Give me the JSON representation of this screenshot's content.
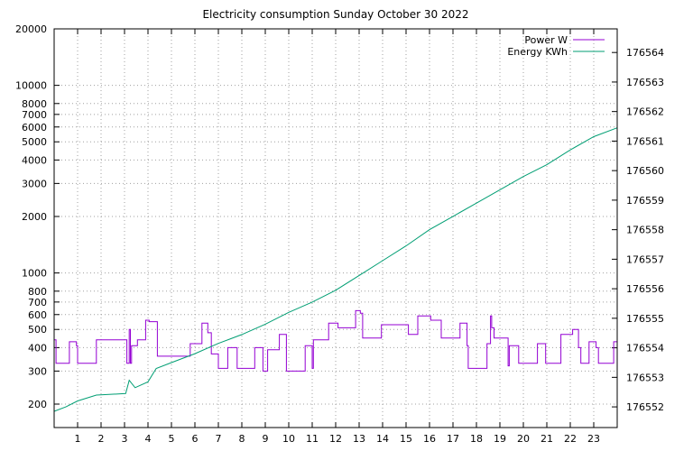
{
  "chart_data": {
    "type": "line",
    "title": "Electricity consumption Sunday October 30 2022",
    "grid": true,
    "legend_position": "top-right",
    "x_axis": {
      "range": [
        0,
        24
      ],
      "ticks": [
        1,
        2,
        3,
        4,
        5,
        6,
        7,
        8,
        9,
        10,
        11,
        12,
        13,
        14,
        15,
        16,
        17,
        18,
        19,
        20,
        21,
        22,
        23
      ]
    },
    "y_left": {
      "scale": "log",
      "range": [
        150,
        20000
      ],
      "ticks": [
        200,
        300,
        400,
        500,
        600,
        700,
        800,
        1000,
        2000,
        3000,
        4000,
        5000,
        6000,
        7000,
        8000,
        10000,
        20000
      ]
    },
    "y_right": {
      "scale": "linear",
      "range": [
        176551.3,
        176564.8
      ],
      "ticks": [
        176552,
        176553,
        176554,
        176555,
        176556,
        176557,
        176558,
        176559,
        176560,
        176561,
        176562,
        176563,
        176564
      ]
    },
    "series": [
      {
        "name": "Power W",
        "axis": "left",
        "color": "#9400d3",
        "style": "step",
        "points": [
          [
            0,
            440
          ],
          [
            0.08,
            330
          ],
          [
            0.65,
            430
          ],
          [
            0.95,
            410
          ],
          [
            1.0,
            330
          ],
          [
            1.8,
            440
          ],
          [
            3.1,
            330
          ],
          [
            3.2,
            500
          ],
          [
            3.25,
            330
          ],
          [
            3.3,
            410
          ],
          [
            3.55,
            440
          ],
          [
            3.9,
            560
          ],
          [
            4.05,
            550
          ],
          [
            4.4,
            360
          ],
          [
            5.8,
            420
          ],
          [
            6.3,
            540
          ],
          [
            6.55,
            480
          ],
          [
            6.7,
            370
          ],
          [
            7.0,
            310
          ],
          [
            7.4,
            400
          ],
          [
            7.8,
            310
          ],
          [
            8.55,
            400
          ],
          [
            8.9,
            300
          ],
          [
            9.1,
            390
          ],
          [
            9.6,
            470
          ],
          [
            9.9,
            300
          ],
          [
            10.7,
            410
          ],
          [
            11.0,
            310
          ],
          [
            11.05,
            440
          ],
          [
            11.7,
            540
          ],
          [
            12.1,
            510
          ],
          [
            12.85,
            630
          ],
          [
            13.05,
            610
          ],
          [
            13.15,
            450
          ],
          [
            13.95,
            530
          ],
          [
            15.1,
            470
          ],
          [
            15.5,
            590
          ],
          [
            16.05,
            560
          ],
          [
            16.5,
            450
          ],
          [
            17.3,
            540
          ],
          [
            17.6,
            410
          ],
          [
            17.65,
            310
          ],
          [
            18.45,
            420
          ],
          [
            18.6,
            590
          ],
          [
            18.65,
            510
          ],
          [
            18.75,
            450
          ],
          [
            19.35,
            320
          ],
          [
            19.4,
            410
          ],
          [
            19.8,
            330
          ],
          [
            20.6,
            420
          ],
          [
            20.95,
            330
          ],
          [
            21.6,
            470
          ],
          [
            22.1,
            500
          ],
          [
            22.35,
            400
          ],
          [
            22.45,
            330
          ],
          [
            22.8,
            430
          ],
          [
            23.1,
            400
          ],
          [
            23.2,
            330
          ],
          [
            23.85,
            430
          ],
          [
            24,
            430
          ]
        ]
      },
      {
        "name": "Energy KWh",
        "axis": "right",
        "color": "#009e73",
        "style": "line",
        "points": [
          [
            0,
            176551.85
          ],
          [
            0.5,
            176552.0
          ],
          [
            1.0,
            176552.2
          ],
          [
            1.8,
            176552.4
          ],
          [
            3.05,
            176552.45
          ],
          [
            3.2,
            176552.9
          ],
          [
            3.45,
            176552.65
          ],
          [
            4.0,
            176552.85
          ],
          [
            4.35,
            176553.3
          ],
          [
            5.0,
            176553.5
          ],
          [
            6.0,
            176553.8
          ],
          [
            7.0,
            176554.15
          ],
          [
            8.0,
            176554.45
          ],
          [
            9.0,
            176554.8
          ],
          [
            10.0,
            176555.2
          ],
          [
            11.0,
            176555.55
          ],
          [
            12.0,
            176555.95
          ],
          [
            13.0,
            176556.45
          ],
          [
            14.0,
            176556.95
          ],
          [
            15.0,
            176557.45
          ],
          [
            16.0,
            176558.0
          ],
          [
            17.0,
            176558.45
          ],
          [
            18.0,
            176558.9
          ],
          [
            19.0,
            176559.35
          ],
          [
            20.0,
            176559.8
          ],
          [
            21.0,
            176560.2
          ],
          [
            22.0,
            176560.7
          ],
          [
            23.0,
            176561.15
          ],
          [
            24,
            176561.45
          ]
        ]
      }
    ]
  }
}
